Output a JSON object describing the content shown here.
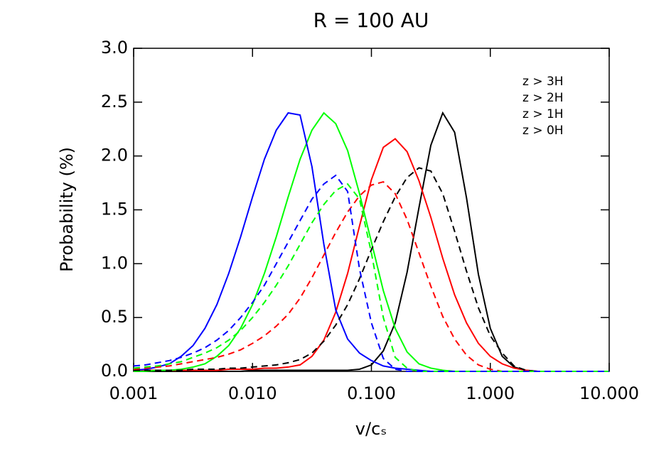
{
  "chart_data": {
    "type": "line",
    "title": "R = 100 AU",
    "xlabel": "v/cₛ",
    "ylabel": "Probability (%)",
    "xscale": "log",
    "xlim": [
      0.001,
      10
    ],
    "ylim": [
      0,
      3
    ],
    "legend": "upper right",
    "xticks": [
      {
        "value": 0.001,
        "label": "0.001"
      },
      {
        "value": 0.01,
        "label": "0.010"
      },
      {
        "value": 0.1,
        "label": "0.100"
      },
      {
        "value": 1,
        "label": "1.000"
      },
      {
        "value": 10,
        "label": "10.000"
      }
    ],
    "yticks": [
      {
        "value": 0,
        "label": "0.0"
      },
      {
        "value": 0.5,
        "label": "0.5"
      },
      {
        "value": 1,
        "label": "1.0"
      },
      {
        "value": 1.5,
        "label": "1.5"
      },
      {
        "value": 2,
        "label": "2.0"
      },
      {
        "value": 2.5,
        "label": "2.5"
      },
      {
        "value": 3,
        "label": "3.0"
      }
    ],
    "x": [
      0.001,
      0.001259,
      0.001585,
      0.001995,
      0.002512,
      0.003162,
      0.003981,
      0.005012,
      0.00631,
      0.007943,
      0.01,
      0.01259,
      0.01585,
      0.01995,
      0.02512,
      0.03162,
      0.03981,
      0.05012,
      0.0631,
      0.07943,
      0.1,
      0.1259,
      0.1585,
      0.1995,
      0.2512,
      0.3162,
      0.3981,
      0.5012,
      0.631,
      0.7943,
      1,
      1.259,
      1.585,
      1.995,
      2.512,
      3.162,
      3.981,
      5.012,
      6.31,
      7.943,
      10
    ],
    "series": [
      {
        "name": "z > 3H",
        "color": "#000000",
        "style": "solid",
        "values": [
          0,
          0,
          0,
          0,
          0,
          0,
          0,
          0,
          0,
          0,
          0.01,
          0.01,
          0.01,
          0.01,
          0.01,
          0.01,
          0.01,
          0.01,
          0.01,
          0.02,
          0.06,
          0.19,
          0.45,
          0.92,
          1.52,
          2.1,
          2.4,
          2.22,
          1.61,
          0.9,
          0.4,
          0.14,
          0.04,
          0.01,
          0,
          0,
          0,
          0,
          0,
          0,
          0
        ]
      },
      {
        "name": "z > 2H",
        "color": "#ff0000",
        "style": "solid",
        "values": [
          0.01,
          0.01,
          0.01,
          0.01,
          0.01,
          0.01,
          0.01,
          0.01,
          0.02,
          0.02,
          0.02,
          0.03,
          0.03,
          0.04,
          0.06,
          0.14,
          0.29,
          0.55,
          0.91,
          1.35,
          1.78,
          2.08,
          2.16,
          2.04,
          1.77,
          1.43,
          1.05,
          0.71,
          0.45,
          0.26,
          0.14,
          0.07,
          0.03,
          0.01,
          0,
          0,
          0,
          0,
          0,
          0,
          0
        ]
      },
      {
        "name": "z > 1H",
        "color": "#00ff00",
        "style": "solid",
        "values": [
          0,
          0,
          0.01,
          0.01,
          0.02,
          0.04,
          0.07,
          0.14,
          0.24,
          0.4,
          0.62,
          0.91,
          1.25,
          1.62,
          1.97,
          2.24,
          2.4,
          2.3,
          2.05,
          1.65,
          1.2,
          0.75,
          0.4,
          0.18,
          0.07,
          0.03,
          0.01,
          0,
          0,
          0,
          0,
          0,
          0,
          0,
          0,
          0,
          0,
          0,
          0,
          0,
          0
        ]
      },
      {
        "name": "z > 0H",
        "color": "#0000ff",
        "style": "solid",
        "values": [
          0.01,
          0.02,
          0.04,
          0.07,
          0.14,
          0.24,
          0.4,
          0.62,
          0.91,
          1.25,
          1.62,
          1.97,
          2.24,
          2.4,
          2.38,
          1.9,
          1.18,
          0.57,
          0.3,
          0.17,
          0.1,
          0.05,
          0.03,
          0.02,
          0.01,
          0,
          0,
          0,
          0,
          0,
          0,
          0,
          0,
          0,
          0,
          0,
          0,
          0,
          0,
          0,
          0
        ]
      },
      {
        "color": "#000000",
        "style": "dashed",
        "values": [
          0.01,
          0.01,
          0.01,
          0.01,
          0.01,
          0.02,
          0.02,
          0.02,
          0.03,
          0.03,
          0.04,
          0.05,
          0.06,
          0.08,
          0.11,
          0.17,
          0.28,
          0.43,
          0.62,
          0.86,
          1.13,
          1.39,
          1.62,
          1.8,
          1.89,
          1.86,
          1.65,
          1.3,
          0.93,
          0.59,
          0.33,
          0.17,
          0.05,
          0.01,
          0,
          0,
          0,
          0,
          0,
          0,
          0
        ]
      },
      {
        "color": "#ff0000",
        "style": "dashed",
        "values": [
          0.02,
          0.03,
          0.04,
          0.05,
          0.07,
          0.09,
          0.11,
          0.13,
          0.16,
          0.2,
          0.26,
          0.33,
          0.42,
          0.53,
          0.68,
          0.87,
          1.08,
          1.29,
          1.48,
          1.63,
          1.73,
          1.76,
          1.65,
          1.41,
          1.1,
          0.79,
          0.51,
          0.3,
          0.15,
          0.06,
          0.02,
          0,
          0,
          0,
          0,
          0,
          0,
          0,
          0,
          0,
          0
        ]
      },
      {
        "color": "#00ff00",
        "style": "dashed",
        "values": [
          0.03,
          0.04,
          0.05,
          0.07,
          0.09,
          0.13,
          0.17,
          0.22,
          0.29,
          0.38,
          0.5,
          0.64,
          0.8,
          0.98,
          1.18,
          1.38,
          1.55,
          1.68,
          1.74,
          1.6,
          1.1,
          0.5,
          0.13,
          0.03,
          0,
          0,
          0,
          0,
          0,
          0,
          0,
          0,
          0,
          0,
          0,
          0,
          0,
          0,
          0,
          0,
          0
        ]
      },
      {
        "color": "#0000ff",
        "style": "dashed",
        "values": [
          0.05,
          0.06,
          0.08,
          0.1,
          0.13,
          0.17,
          0.22,
          0.29,
          0.38,
          0.5,
          0.64,
          0.8,
          1.0,
          1.2,
          1.4,
          1.6,
          1.74,
          1.82,
          1.67,
          0.95,
          0.45,
          0.12,
          0.02,
          0,
          0,
          0,
          0,
          0,
          0,
          0,
          0,
          0,
          0,
          0,
          0,
          0,
          0,
          0,
          0,
          0,
          0
        ]
      }
    ]
  }
}
